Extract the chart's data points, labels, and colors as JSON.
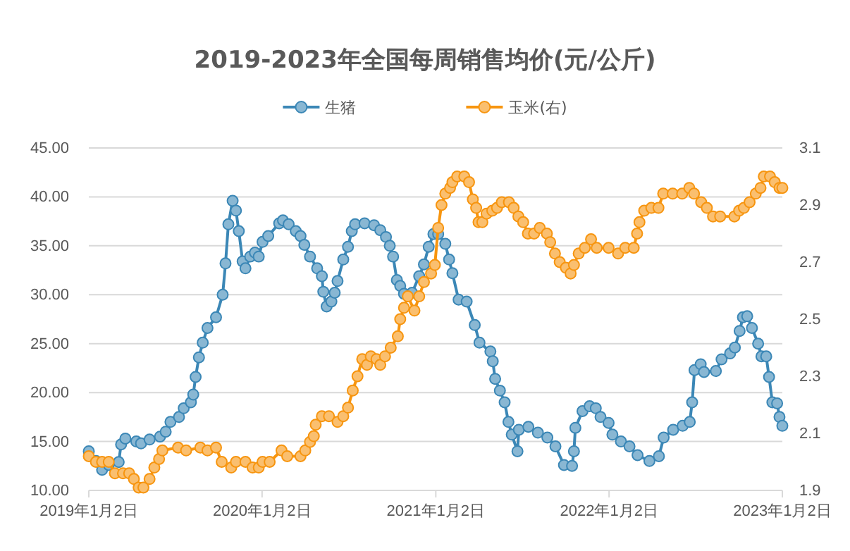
{
  "chart_data": {
    "type": "line",
    "title": "2019-2023年全国每周销售均价(元/公斤)",
    "legend": "top",
    "grid": "y",
    "marker": "circle",
    "line_style": "solid",
    "xlim": [
      "2019-01-02",
      "2023-01-02"
    ],
    "xticks": [
      {
        "value": "2019-01-02",
        "label": "2019年1月2日"
      },
      {
        "value": "2020-01-02",
        "label": "2020年1月2日"
      },
      {
        "value": "2021-01-02",
        "label": "2021年1月2日"
      },
      {
        "value": "2022-01-02",
        "label": "2022年1月2日"
      },
      {
        "value": "2023-01-02",
        "label": "2023年1月2日"
      }
    ],
    "ylim": [
      10,
      45
    ],
    "yticks": [
      {
        "value": 10,
        "label": "10.00"
      },
      {
        "value": 15,
        "label": "15.00"
      },
      {
        "value": 20,
        "label": "20.00"
      },
      {
        "value": 25,
        "label": "25.00"
      },
      {
        "value": 30,
        "label": "30.00"
      },
      {
        "value": 35,
        "label": "35.00"
      },
      {
        "value": 40,
        "label": "40.00"
      },
      {
        "value": 45,
        "label": "45.00"
      }
    ],
    "y2lim": [
      1.9,
      3.1
    ],
    "y2ticks": [
      1.9,
      2.1,
      2.3,
      2.5,
      2.7,
      2.9,
      3.1
    ],
    "series": [
      {
        "name": "生猪",
        "color": "#3b87b6",
        "x": [
          "2019-01-02",
          "2019-01-17",
          "2019-01-30",
          "2019-02-13",
          "2019-03-06",
          "2019-03-11",
          "2019-03-20",
          "2019-04-12",
          "2019-04-22",
          "2019-05-10",
          "2019-06-01",
          "2019-06-13",
          "2019-06-23",
          "2019-07-11",
          "2019-07-21",
          "2019-08-05",
          "2019-08-10",
          "2019-08-15",
          "2019-08-22",
          "2019-08-30",
          "2019-09-09",
          "2019-09-27",
          "2019-10-11",
          "2019-10-17",
          "2019-10-23",
          "2019-11-01",
          "2019-11-08",
          "2019-11-14",
          "2019-11-22",
          "2019-11-28",
          "2019-12-08",
          "2019-12-18",
          "2019-12-26",
          "2020-01-03",
          "2020-01-15",
          "2020-02-07",
          "2020-02-15",
          "2020-02-27",
          "2020-03-13",
          "2020-03-23",
          "2020-03-31",
          "2020-04-12",
          "2020-04-27",
          "2020-05-07",
          "2020-05-10",
          "2020-05-17",
          "2020-05-27",
          "2020-06-03",
          "2020-06-09",
          "2020-06-21",
          "2020-07-01",
          "2020-07-09",
          "2020-07-16",
          "2020-08-05",
          "2020-08-25",
          "2020-09-07",
          "2020-09-19",
          "2020-09-27",
          "2020-10-04",
          "2020-10-12",
          "2020-10-19",
          "2020-10-27",
          "2020-11-13",
          "2020-11-28",
          "2020-12-08",
          "2020-12-18",
          "2020-12-28",
          "2021-01-07",
          "2021-01-22",
          "2021-01-30",
          "2021-02-06",
          "2021-02-19",
          "2021-03-08",
          "2021-03-25",
          "2021-04-04",
          "2021-04-27",
          "2021-05-02",
          "2021-05-07",
          "2021-05-17",
          "2021-05-27",
          "2021-06-04",
          "2021-06-11",
          "2021-06-23",
          "2021-06-26",
          "2021-07-16",
          "2021-08-05",
          "2021-08-25",
          "2021-09-11",
          "2021-09-29",
          "2021-10-16",
          "2021-10-20",
          "2021-10-23",
          "2021-11-07",
          "2021-11-22",
          "2021-12-05",
          "2021-12-15",
          "2022-01-01",
          "2022-01-09",
          "2022-01-27",
          "2022-02-14",
          "2022-03-03",
          "2022-03-28",
          "2022-04-17",
          "2022-04-27",
          "2022-05-17",
          "2022-06-06",
          "2022-06-21",
          "2022-06-26",
          "2022-07-01",
          "2022-07-14",
          "2022-07-21",
          "2022-08-15",
          "2022-08-27",
          "2022-09-14",
          "2022-09-24",
          "2022-10-04",
          "2022-10-11",
          "2022-10-20",
          "2022-10-30",
          "2022-11-12",
          "2022-11-19",
          "2022-11-29",
          "2022-12-05",
          "2022-12-12",
          "2022-12-22",
          "2022-12-27",
          "2023-01-02"
        ],
        "values": [
          14.0,
          13.0,
          12.1,
          12.6,
          12.9,
          14.7,
          15.3,
          15.0,
          14.8,
          15.2,
          15.5,
          16.0,
          17.0,
          17.5,
          18.4,
          19.0,
          19.8,
          21.6,
          23.6,
          25.1,
          26.6,
          27.7,
          30.0,
          33.2,
          37.2,
          39.6,
          38.6,
          36.5,
          33.4,
          32.7,
          33.9,
          34.3,
          33.9,
          35.4,
          36.0,
          37.3,
          37.6,
          37.2,
          36.5,
          36.0,
          35.1,
          33.9,
          32.7,
          31.9,
          30.3,
          28.8,
          29.3,
          30.2,
          31.4,
          33.6,
          34.9,
          36.5,
          37.2,
          37.3,
          37.1,
          36.6,
          35.9,
          35.0,
          33.9,
          31.5,
          30.9,
          30.1,
          30.2,
          31.9,
          33.1,
          34.9,
          36.2,
          36.2,
          35.2,
          33.6,
          32.2,
          29.5,
          29.3,
          26.9,
          25.1,
          24.2,
          23.2,
          21.4,
          20.2,
          19.0,
          17.0,
          15.7,
          14.0,
          16.2,
          16.5,
          15.9,
          15.4,
          14.5,
          12.6,
          12.5,
          14.0,
          16.4,
          18.1,
          18.6,
          18.4,
          17.5,
          16.9,
          15.7,
          15.0,
          14.5,
          13.6,
          13.0,
          13.5,
          15.4,
          16.2,
          16.6,
          17.0,
          19.0,
          22.3,
          22.9,
          22.1,
          22.2,
          23.4,
          24.0,
          24.6,
          26.3,
          27.7,
          27.8,
          26.6,
          25.0,
          23.7,
          23.7,
          21.6,
          19.0,
          18.9,
          17.5,
          16.6
        ]
      },
      {
        "name": "玉米(右)",
        "color": "#f7950f",
        "axis": "y2",
        "x": [
          "2019-01-02",
          "2019-01-17",
          "2019-01-30",
          "2019-02-13",
          "2019-02-26",
          "2019-03-15",
          "2019-03-28",
          "2019-04-07",
          "2019-04-17",
          "2019-04-27",
          "2019-05-10",
          "2019-05-20",
          "2019-05-30",
          "2019-06-06",
          "2019-07-09",
          "2019-07-26",
          "2019-08-25",
          "2019-09-09",
          "2019-09-27",
          "2019-10-09",
          "2019-10-29",
          "2019-11-08",
          "2019-11-28",
          "2019-12-13",
          "2019-12-26",
          "2020-01-03",
          "2020-01-18",
          "2020-02-12",
          "2020-02-24",
          "2020-03-23",
          "2020-04-02",
          "2020-04-12",
          "2020-04-20",
          "2020-04-24",
          "2020-05-07",
          "2020-05-22",
          "2020-06-09",
          "2020-06-21",
          "2020-07-01",
          "2020-07-11",
          "2020-07-21",
          "2020-07-31",
          "2020-08-10",
          "2020-08-18",
          "2020-08-30",
          "2020-09-07",
          "2020-09-17",
          "2020-09-29",
          "2020-10-14",
          "2020-10-19",
          "2020-10-27",
          "2020-11-04",
          "2020-11-18",
          "2020-11-28",
          "2020-12-08",
          "2020-12-23",
          "2020-12-31",
          "2021-01-07",
          "2021-01-14",
          "2021-01-22",
          "2021-02-01",
          "2021-02-06",
          "2021-02-16",
          "2021-03-03",
          "2021-03-13",
          "2021-03-21",
          "2021-03-28",
          "2021-04-02",
          "2021-04-10",
          "2021-04-19",
          "2021-05-01",
          "2021-05-11",
          "2021-05-21",
          "2021-06-05",
          "2021-06-15",
          "2021-06-25",
          "2021-07-05",
          "2021-07-15",
          "2021-07-28",
          "2021-08-09",
          "2021-08-24",
          "2021-08-31",
          "2021-09-10",
          "2021-09-20",
          "2021-10-03",
          "2021-10-13",
          "2021-10-20",
          "2021-10-30",
          "2021-11-12",
          "2021-11-25",
          "2021-12-07",
          "2022-01-01",
          "2022-01-21",
          "2022-02-05",
          "2022-02-23",
          "2022-03-02",
          "2022-03-07",
          "2022-03-17",
          "2022-04-01",
          "2022-04-16",
          "2022-04-26",
          "2022-05-16",
          "2022-06-05",
          "2022-06-20",
          "2022-06-30",
          "2022-07-15",
          "2022-07-27",
          "2022-08-09",
          "2022-08-24",
          "2022-09-23",
          "2022-10-03",
          "2022-10-13",
          "2022-10-25",
          "2022-11-07",
          "2022-11-17",
          "2022-11-24",
          "2022-12-07",
          "2022-12-17",
          "2022-12-27",
          "2023-01-02"
        ],
        "values": [
          2.02,
          2.0,
          2.0,
          2.0,
          1.96,
          1.96,
          1.96,
          1.94,
          1.91,
          1.91,
          1.94,
          1.98,
          2.01,
          2.04,
          2.05,
          2.04,
          2.05,
          2.04,
          2.05,
          2.0,
          1.98,
          2.0,
          2.0,
          1.98,
          1.98,
          2.0,
          2.0,
          2.04,
          2.02,
          2.02,
          2.04,
          2.07,
          2.09,
          2.13,
          2.16,
          2.16,
          2.14,
          2.16,
          2.19,
          2.25,
          2.3,
          2.36,
          2.34,
          2.37,
          2.36,
          2.34,
          2.37,
          2.4,
          2.44,
          2.5,
          2.54,
          2.58,
          2.53,
          2.58,
          2.63,
          2.66,
          2.69,
          2.82,
          2.9,
          2.94,
          2.96,
          2.98,
          3.0,
          3.0,
          2.98,
          2.92,
          2.89,
          2.84,
          2.84,
          2.87,
          2.88,
          2.89,
          2.91,
          2.91,
          2.89,
          2.86,
          2.84,
          2.8,
          2.8,
          2.82,
          2.8,
          2.77,
          2.73,
          2.7,
          2.68,
          2.66,
          2.69,
          2.73,
          2.75,
          2.78,
          2.75,
          2.75,
          2.73,
          2.75,
          2.75,
          2.8,
          2.84,
          2.88,
          2.89,
          2.89,
          2.94,
          2.94,
          2.94,
          2.96,
          2.94,
          2.91,
          2.89,
          2.86,
          2.86,
          2.86,
          2.88,
          2.89,
          2.91,
          2.94,
          2.96,
          3.0,
          3.0,
          2.98,
          2.96,
          2.96
        ]
      }
    ]
  }
}
